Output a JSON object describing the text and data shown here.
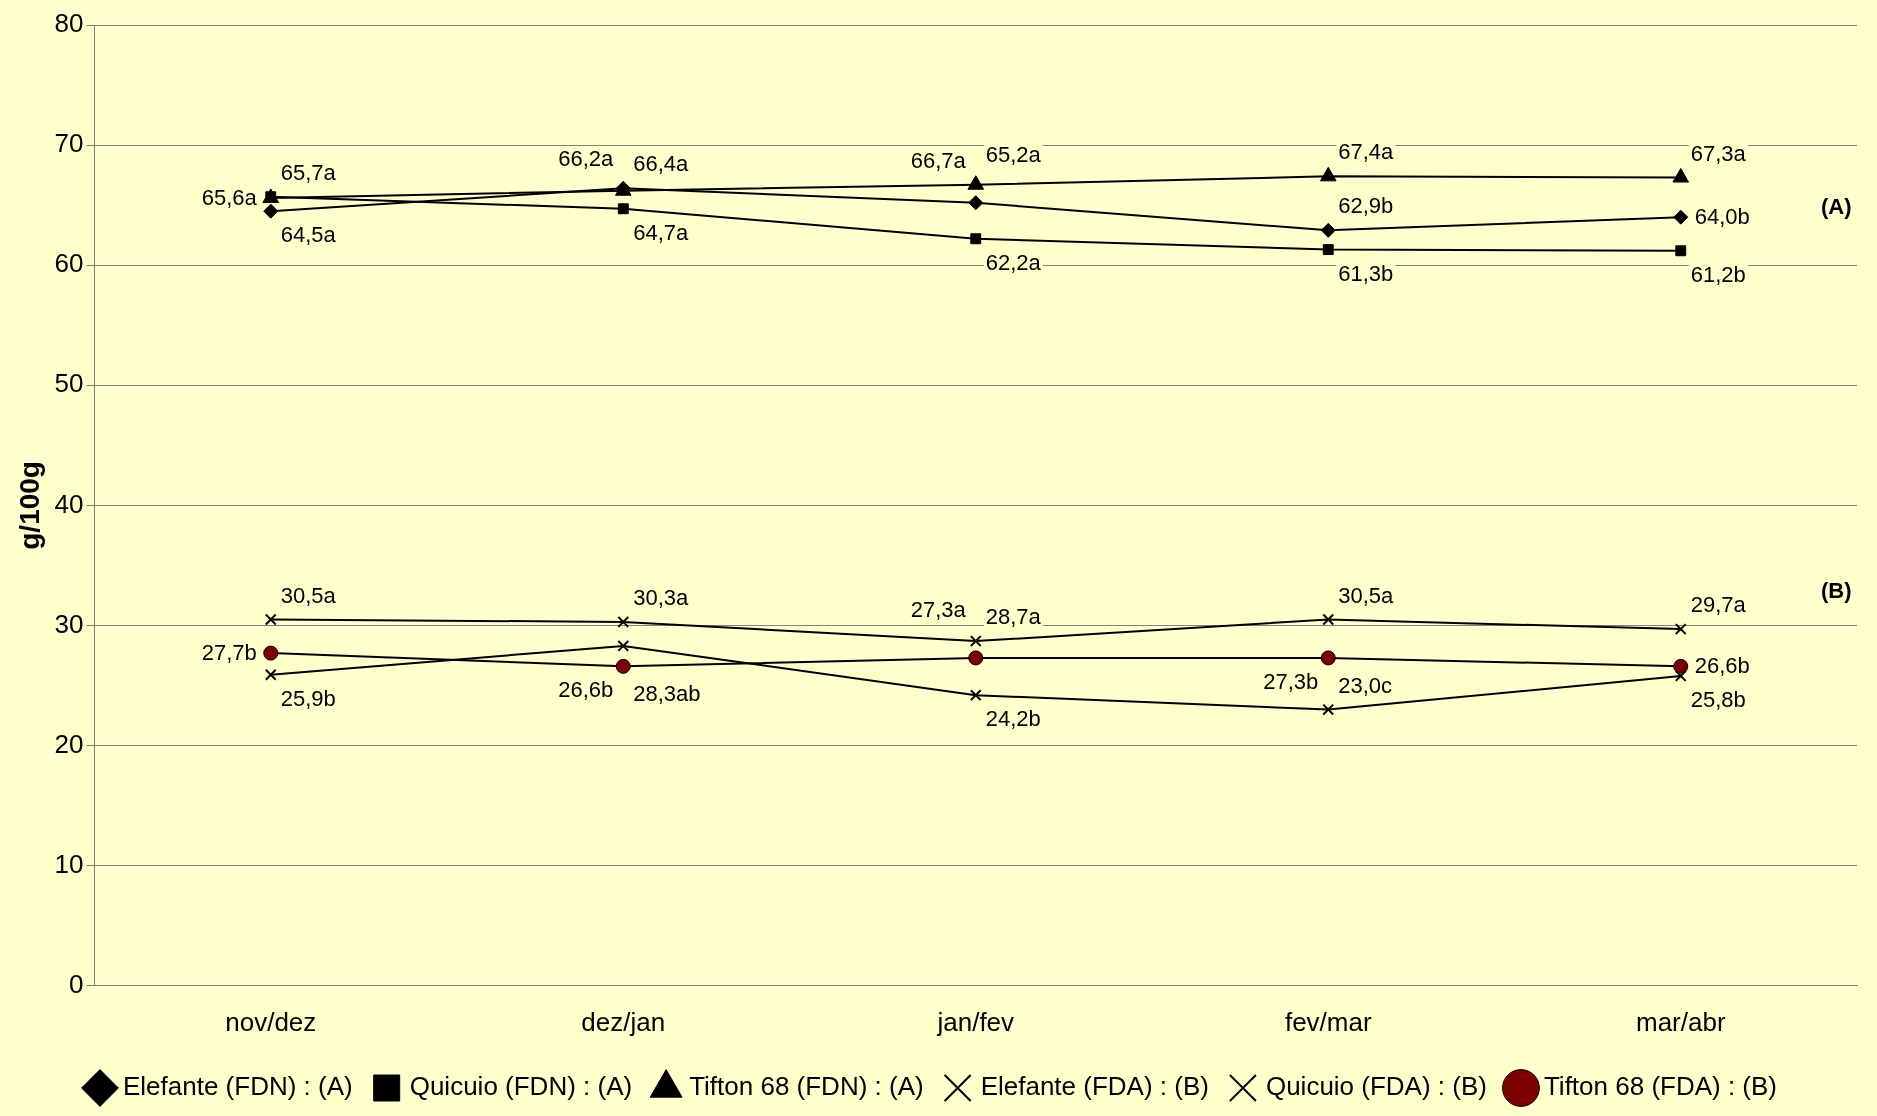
{
  "chart_data": {
    "type": "line",
    "ylabel": "g/100g",
    "categories": [
      "nov/dez",
      "dez/jan",
      "jan/fev",
      "fev/mar",
      "mar/abr"
    ],
    "ylim": [
      0,
      80
    ],
    "yticks": [
      0,
      10,
      20,
      30,
      40,
      50,
      60,
      70,
      80
    ],
    "grid": "y",
    "legend": "bottom",
    "line_style": "solid",
    "annotations": [
      "(A)",
      "(B)"
    ],
    "series": [
      {
        "name": "Elefante (FDN) : (A)",
        "color": "#000000",
        "marker": "diamond",
        "values": [
          64.5,
          66.4,
          65.2,
          62.9,
          64.0
        ],
        "value_labels": [
          "64,5a",
          "66,4a",
          "65,2a",
          "62,9b",
          "64,0b"
        ]
      },
      {
        "name": "Quicuio (FDN) : (A)",
        "color": "#000000",
        "marker": "square",
        "values": [
          65.7,
          64.7,
          62.2,
          61.3,
          61.2
        ],
        "value_labels": [
          "65,7a",
          "64,7a",
          "62,2a",
          "61,3b",
          "61,2b"
        ]
      },
      {
        "name": "Tifton 68 (FDN) : (A)",
        "color": "#000000",
        "marker": "triangle",
        "values": [
          65.6,
          66.2,
          66.7,
          67.4,
          67.3
        ],
        "value_labels": [
          "65,6a",
          "66,2a",
          "66,7a",
          "67,4a",
          "67,3a"
        ]
      },
      {
        "name": "Elefante (FDA) : (B)",
        "color": "#000000",
        "marker": "cross",
        "values": [
          30.5,
          30.3,
          28.7,
          30.5,
          29.7
        ],
        "value_labels": [
          "30,5a",
          "30,3a",
          "28,7a",
          "30,5a",
          "29,7a"
        ]
      },
      {
        "name": "Quicuio (FDA) : (B)",
        "color": "#000000",
        "marker": "cross",
        "values": [
          25.9,
          28.3,
          24.2,
          23.0,
          25.8
        ],
        "value_labels": [
          "25,9b",
          "28,3ab",
          "24,2b",
          "23,0c",
          "25,8b"
        ]
      },
      {
        "name": "Tifton 68 (FDA) : (B)",
        "color": "#800000",
        "marker": "circle",
        "values": [
          27.7,
          26.6,
          27.3,
          27.3,
          26.6
        ],
        "value_labels": [
          "27,7b",
          "26,6b",
          "27,3a",
          "27,3b",
          "26,6b"
        ]
      }
    ]
  }
}
